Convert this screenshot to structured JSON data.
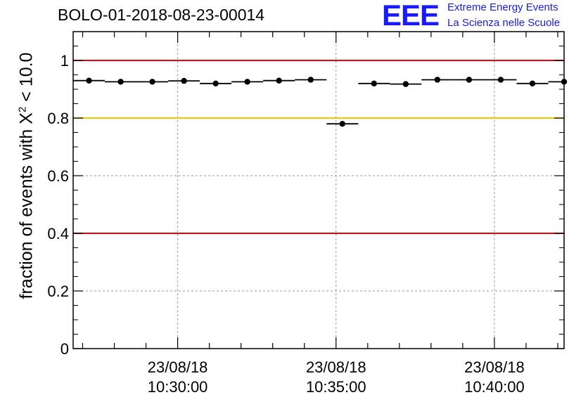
{
  "header": {
    "title": "BOLO-01-2018-08-23-00014",
    "logo_text": "EEE",
    "logo_line1": "Extreme Energy Events",
    "logo_line2": "La Scienza nelle Scuole"
  },
  "colors": {
    "logo": "#1a1aff",
    "red_threshold": "#e8000b",
    "yellow_threshold": "#ffc000",
    "points": "#000000",
    "grid": "#9a9a9a"
  },
  "chart_data": {
    "type": "scatter",
    "title": "BOLO-01-2018-08-23-00014",
    "ylabel": "fraction of events with χ² < 10.0",
    "ylabel_parts": {
      "prefix": "fraction of events with ",
      "symbol": "X",
      "sup": "2",
      "suffix": " < 10.0"
    },
    "ylim": [
      0,
      1.1
    ],
    "yticks": [
      "0",
      "0.2",
      "0.4",
      "0.6",
      "0.8",
      "1"
    ],
    "xlim_minutes": [
      26.7,
      42.2
    ],
    "xticks": [
      {
        "minute": 30,
        "date": "23/08/18",
        "time": "10:30:00"
      },
      {
        "minute": 35,
        "date": "23/08/18",
        "time": "10:35:00"
      },
      {
        "minute": 40,
        "date": "23/08/18",
        "time": "10:40:00"
      }
    ],
    "grid": true,
    "thresholds": [
      {
        "y": 1.0,
        "color": "red"
      },
      {
        "y": 0.8,
        "color": "yellow"
      },
      {
        "y": 0.4,
        "color": "red"
      }
    ],
    "bin_width_minutes": 1,
    "points": [
      {
        "x": 27.2,
        "y": 0.93
      },
      {
        "x": 28.2,
        "y": 0.926
      },
      {
        "x": 29.2,
        "y": 0.926
      },
      {
        "x": 30.2,
        "y": 0.929
      },
      {
        "x": 31.2,
        "y": 0.92
      },
      {
        "x": 32.2,
        "y": 0.926
      },
      {
        "x": 33.2,
        "y": 0.93
      },
      {
        "x": 34.2,
        "y": 0.933
      },
      {
        "x": 35.2,
        "y": 0.78
      },
      {
        "x": 36.2,
        "y": 0.92
      },
      {
        "x": 37.2,
        "y": 0.918
      },
      {
        "x": 38.2,
        "y": 0.933
      },
      {
        "x": 39.2,
        "y": 0.933
      },
      {
        "x": 40.2,
        "y": 0.933
      },
      {
        "x": 41.2,
        "y": 0.92
      },
      {
        "x": 42.2,
        "y": 0.926
      }
    ]
  }
}
